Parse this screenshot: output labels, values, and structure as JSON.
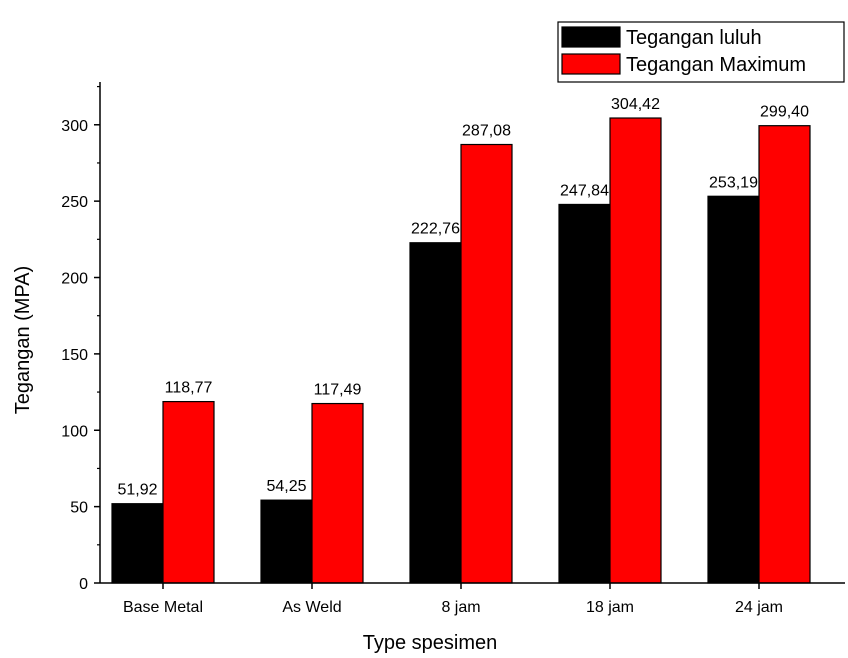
{
  "chart_data": {
    "type": "bar",
    "categories": [
      "Base Metal",
      "As Weld",
      "8 jam",
      "18 jam",
      "24 jam"
    ],
    "series": [
      {
        "name": "Tegangan luluh",
        "color": "#000000",
        "values": [
          51.92,
          54.25,
          222.76,
          247.84,
          253.19
        ]
      },
      {
        "name": "Tegangan Maximum",
        "color": "#ff0000",
        "values": [
          118.77,
          117.49,
          287.08,
          304.42,
          299.4
        ]
      }
    ],
    "value_labels": [
      [
        "51,92",
        "54,25",
        "222,76",
        "247,84",
        "253,19"
      ],
      [
        "118,77",
        "117,49",
        "287,08",
        "304,42",
        "299,40"
      ]
    ],
    "xlabel": "Type spesimen",
    "ylabel": "Tegangan (MPA)",
    "ylim": [
      0,
      328
    ],
    "yticks": [
      0,
      50,
      100,
      150,
      200,
      250,
      300
    ],
    "legend": "top-right"
  }
}
